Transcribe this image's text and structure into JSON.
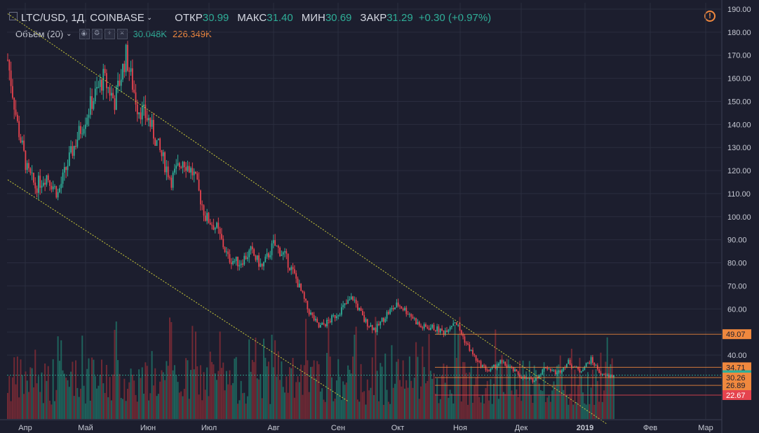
{
  "header": {
    "symbol": "LTC/USD, 1Д, COINBASE",
    "open_label": "ОТКР",
    "open": "30.99",
    "high_label": "МАКС",
    "high": "31.40",
    "low_label": "МИН",
    "low": "30.69",
    "close_label": "ЗАКР",
    "close": "31.29",
    "change": "+0.30 (+0.97%)"
  },
  "volume_legend": {
    "label": "Объём (20)",
    "value1": "30.048K",
    "value2": "226.349K"
  },
  "colors": {
    "background": "#1c1e2e",
    "up": "#2fae98",
    "down": "#e5434e",
    "accent": "#f0883e",
    "trendline": "#c8c83a"
  },
  "icons": [
    "collapse-icon",
    "eye-icon",
    "gear-icon",
    "plus-icon",
    "close-icon",
    "chevron-down-icon",
    "warning-icon"
  ],
  "chart_data": {
    "type": "candlestick",
    "x_axis_labels": [
      "Апр",
      "Май",
      "Июн",
      "Июл",
      "Авг",
      "Сен",
      "Окт",
      "Ноя",
      "Дек",
      "2019",
      "Фев",
      "Мар"
    ],
    "y_ticks": [
      40,
      50,
      60,
      70,
      80,
      90,
      100,
      110,
      120,
      130,
      140,
      150,
      160,
      170,
      180,
      190
    ],
    "y_tick_labels": [
      "40.00",
      "50.00",
      "60.00",
      "70.00",
      "80.00",
      "90.00",
      "100.00",
      "110.00",
      "120.00",
      "130.00",
      "140.00",
      "150.00",
      "160.00",
      "170.00",
      "180.00",
      "190.00"
    ],
    "ylim": [
      20,
      190
    ],
    "price_markers": [
      {
        "label": "49.07",
        "value": 49.07,
        "color": "#f0883e",
        "text_color": "#1c1e2e"
      },
      {
        "label": "34.71",
        "value": 34.71,
        "color": "#f0883e",
        "text_color": "#1c1e2e"
      },
      {
        "label": "31.29",
        "value": 31.29,
        "color": "#2fae98",
        "text_color": "#ffffff"
      },
      {
        "label": "30.26",
        "value": 30.26,
        "color": "#f0883e",
        "text_color": "#1c1e2e"
      },
      {
        "label": "26.89",
        "value": 26.89,
        "color": "#f0883e",
        "text_color": "#1c1e2e"
      },
      {
        "label": "22.67",
        "value": 22.67,
        "color": "#e5434e",
        "text_color": "#ffffff"
      }
    ],
    "close_series": [
      [
        0,
        168
      ],
      [
        6,
        140
      ],
      [
        12,
        120
      ],
      [
        17,
        113
      ],
      [
        24,
        118
      ],
      [
        31,
        110
      ],
      [
        38,
        125
      ],
      [
        45,
        138
      ],
      [
        52,
        150
      ],
      [
        59,
        160
      ],
      [
        66,
        150
      ],
      [
        73,
        170
      ],
      [
        80,
        148
      ],
      [
        87,
        142
      ],
      [
        94,
        128
      ],
      [
        101,
        116
      ],
      [
        108,
        125
      ],
      [
        115,
        118
      ],
      [
        122,
        100
      ],
      [
        129,
        95
      ],
      [
        136,
        82
      ],
      [
        143,
        80
      ],
      [
        150,
        85
      ],
      [
        157,
        78
      ],
      [
        164,
        88
      ],
      [
        171,
        83
      ],
      [
        178,
        73
      ],
      [
        185,
        60
      ],
      [
        192,
        52
      ],
      [
        199,
        55
      ],
      [
        206,
        60
      ],
      [
        213,
        65
      ],
      [
        220,
        55
      ],
      [
        227,
        51
      ],
      [
        234,
        58
      ],
      [
        241,
        62
      ],
      [
        248,
        58
      ],
      [
        255,
        52
      ],
      [
        262,
        52
      ],
      [
        269,
        50
      ],
      [
        276,
        55
      ],
      [
        283,
        45
      ],
      [
        290,
        37
      ],
      [
        297,
        33
      ],
      [
        304,
        37
      ],
      [
        311,
        34
      ],
      [
        318,
        30
      ],
      [
        325,
        29
      ],
      [
        332,
        35
      ],
      [
        339,
        32
      ],
      [
        346,
        37
      ],
      [
        353,
        33
      ],
      [
        360,
        38
      ],
      [
        367,
        31
      ],
      [
        374,
        31
      ]
    ],
    "trendlines": [
      {
        "name": "upper",
        "points": [
          [
            0,
            188
          ],
          [
            370,
            10
          ]
        ]
      },
      {
        "name": "lower",
        "points": [
          [
            0,
            116
          ],
          [
            210,
            20
          ]
        ]
      }
    ]
  }
}
